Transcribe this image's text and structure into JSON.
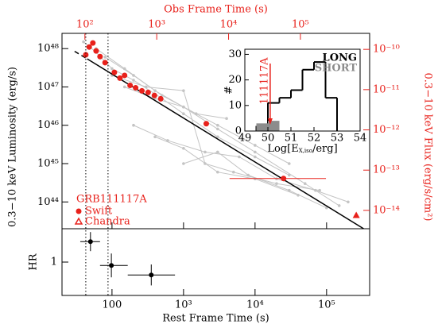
{
  "chart_data": [
    {
      "type": "scatter",
      "x2label": "Obs Frame Time (s)",
      "ylabel": "0.3−10 keV Luminosity (erg/s)",
      "y2label": "0.3−10 keV Flux (erg/s/cm²)",
      "xlog": true,
      "ylog": true,
      "xlim": [
        20,
        400000
      ],
      "ylim": [
        2e+43,
        2.5e+48
      ],
      "x2lim": [
        48,
        920000
      ],
      "y2lim": [
        3.5e-15,
        2.5e-10
      ],
      "yticks": [
        {
          "value": 1e+44,
          "label": "10⁴⁴"
        },
        {
          "value": 1e+45,
          "label": "10⁴⁵"
        },
        {
          "value": 1e+46,
          "label": "10⁴⁶"
        },
        {
          "value": 1e+47,
          "label": "10⁴⁷"
        },
        {
          "value": 1e+48,
          "label": "10⁴⁸"
        }
      ],
      "x2ticks": [
        {
          "value": 100,
          "label": "10²"
        },
        {
          "value": 1000,
          "label": "10³"
        },
        {
          "value": 10000,
          "label": "10⁴"
        },
        {
          "value": 100000,
          "label": "10⁵"
        }
      ],
      "y2ticks": [
        {
          "value": 1e-14,
          "label": "10⁻¹⁴"
        },
        {
          "value": 1e-13,
          "label": "10⁻¹³"
        },
        {
          "value": 1e-12,
          "label": "10⁻¹²"
        },
        {
          "value": 1e-11,
          "label": "10⁻¹¹"
        },
        {
          "value": 1e-10,
          "label": "10⁻¹⁰"
        }
      ],
      "vlines": [
        43,
        88
      ],
      "legend_title": "GRB111117A",
      "series": [
        {
          "color": "#c4c4c4",
          "mode": "line",
          "x": [
            40,
            60,
            100,
            200,
            500,
            1000,
            3000,
            10000,
            30000
          ],
          "y": [
            1.5e+48,
            8e+47,
            3e+47,
            1.5e+47,
            5e+46,
            2e+46,
            5e+45,
            1.5e+45,
            5e+44
          ]
        },
        {
          "color": "#c4c4c4",
          "mode": "line",
          "x": [
            60,
            150,
            400,
            1000,
            3000,
            10000,
            50000,
            150000
          ],
          "y": [
            1e+48,
            3e+47,
            8e+46,
            3e+46,
            8e+45,
            2e+45,
            3e+44,
            8e+43
          ]
        },
        {
          "color": "#c4c4c4",
          "mode": "line",
          "x": [
            100,
            300,
            1000,
            2000,
            5000,
            20000,
            80000
          ],
          "y": [
            2e+47,
            1e+47,
            8e+46,
            1e+45,
            6e+44,
            3e+44,
            2e+44
          ]
        },
        {
          "color": "#c4c4c4",
          "mode": "line",
          "x": [
            200,
            600,
            2000,
            6000,
            20000,
            70000,
            200000
          ],
          "y": [
            1e+46,
            4e+45,
            2e+45,
            1.5e+45,
            4e+44,
            2e+44,
            1e+44
          ]
        },
        {
          "color": "#c4c4c4",
          "mode": "line",
          "x": [
            400,
            1000,
            3000,
            10000,
            40000
          ],
          "y": [
            5e+45,
            2.5e+45,
            6e+44,
            4e+44,
            1.5e+44
          ]
        },
        {
          "color": "#c4c4c4",
          "mode": "line",
          "x": [
            1000,
            3000,
            8000,
            30000,
            100000
          ],
          "y": [
            1e+45,
            2e+45,
            5e+44,
            2e+44,
            7e+43
          ]
        },
        {
          "color": "#c4c4c4",
          "mode": "line",
          "x": [
            80,
            200,
            500,
            1500,
            4000
          ],
          "y": [
            6e+47,
            2e+47,
            6e+46,
            2e+46,
            1.5e+46
          ]
        },
        {
          "color": "#c4c4c4",
          "mode": "line",
          "x": [
            150,
            400,
            1000,
            3000,
            10000,
            30000
          ],
          "y": [
            1e+47,
            5e+46,
            3e+46,
            1e+46,
            3e+45,
            1e+45
          ]
        },
        {
          "color": "#000000",
          "mode": "dashed",
          "x": [
            30,
            45
          ],
          "y": [
            8.5e+47,
            5.4e+47
          ]
        },
        {
          "color": "#000000",
          "mode": "line",
          "x": [
            45,
            330000
          ],
          "y": [
            5.4e+47,
            2e+43
          ]
        },
        {
          "name": "Swift",
          "color": "#e8211b",
          "mode": "circle",
          "x": [
            43,
            48,
            54,
            60,
            68,
            80,
            108,
            129,
            150,
            179,
            214,
            262,
            320,
            392,
            480,
            2080,
            25000
          ],
          "y": [
            6.9e+47,
            1.1e+48,
            1.4e+48,
            8.7e+47,
            6.2e+47,
            4.3e+47,
            2.4e+47,
            1.7e+47,
            2e+47,
            1.1e+47,
            9.5e+46,
            7.9e+46,
            7.2e+46,
            6e+46,
            4.9e+46,
            1.1e+46,
            4.1e+44
          ],
          "xerr_low": [
            null,
            null,
            null,
            null,
            null,
            null,
            null,
            null,
            null,
            null,
            null,
            null,
            null,
            null,
            null,
            null,
            4400
          ],
          "xerr_high": [
            null,
            null,
            null,
            null,
            null,
            null,
            null,
            null,
            null,
            null,
            null,
            null,
            null,
            null,
            null,
            null,
            98000
          ]
        },
        {
          "name": "Chandra",
          "color": "#e8211b",
          "mode": "triangle",
          "x": [
            260000
          ],
          "y": [
            4.5e+43
          ]
        }
      ]
    },
    {
      "type": "histogram",
      "xlabel": {
        "main": "Log[E",
        "sub": "X,iso",
        "tail": "/erg]"
      },
      "ylabel": "#",
      "bins": [
        49.5,
        50,
        50.5,
        51,
        51.5,
        52,
        52.5,
        53
      ],
      "xlim": [
        49,
        54
      ],
      "ylim": [
        0,
        32
      ],
      "xticks": [
        49,
        50,
        51,
        52,
        53,
        54
      ],
      "yticks": [
        0,
        10,
        20,
        30
      ],
      "annotation": "111117A",
      "annotation_x": 50.1,
      "series": [
        {
          "name": "LONG",
          "color": "#000000",
          "values": [
            2,
            11,
            13,
            16,
            24,
            27,
            13
          ]
        },
        {
          "name": "SHORT",
          "color": "#8c8c8c",
          "values": [
            3,
            4,
            0,
            0,
            0,
            0,
            0
          ]
        }
      ]
    },
    {
      "type": "errorbar",
      "xlabel": "Rest Frame Time (s)",
      "ylabel": "HR",
      "xlim": [
        20,
        400000
      ],
      "ylim": [
        0.3,
        1.7
      ],
      "xticks": [
        100,
        {
          "value": 1000,
          "label": "10³"
        },
        {
          "value": 10000,
          "label": "10⁴"
        },
        {
          "value": 100000,
          "label": "10⁵"
        }
      ],
      "yticks": [
        1
      ],
      "x": [
        50,
        98,
        354
      ],
      "xlo": [
        36,
        68,
        166
      ],
      "xhi": [
        68,
        166,
        760
      ],
      "y": [
        1.43,
        0.93,
        0.73
      ],
      "yerr": [
        0.2,
        0.25,
        0.22
      ],
      "color": "#000000"
    }
  ]
}
